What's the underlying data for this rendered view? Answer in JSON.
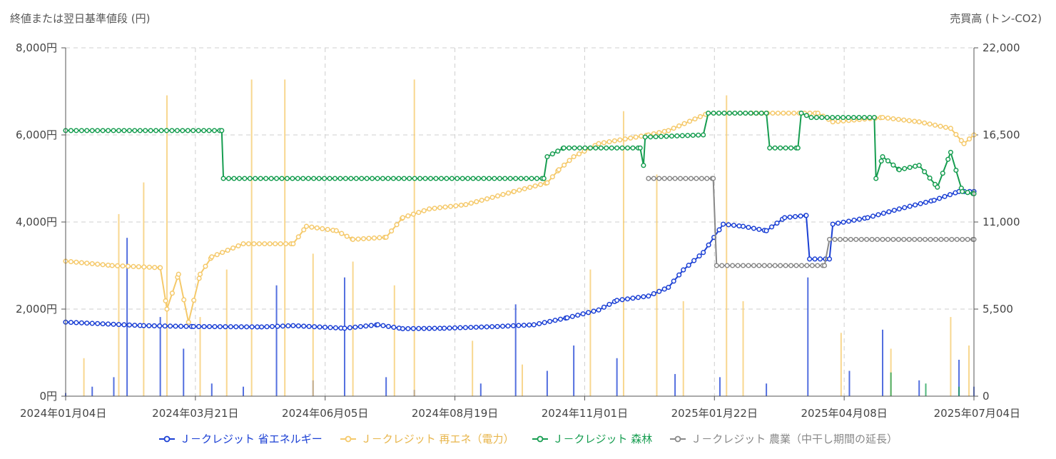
{
  "chart_data": {
    "type": "line",
    "y_left_title": "終値または翌日基準値段 (円)",
    "y_right_title": "売買高 (トン-CO2)",
    "y_left_ticks": [
      "0円",
      "2,000円",
      "4,000円",
      "6,000円",
      "8,000円"
    ],
    "y_left_range": [
      0,
      8000
    ],
    "y_right_ticks": [
      "0",
      "5,500",
      "11,000",
      "16,500",
      "22,000"
    ],
    "y_right_range": [
      0,
      22000
    ],
    "x_ticks": [
      "2024年01月04日",
      "2024年03月21日",
      "2024年06月05日",
      "2024年08月19日",
      "2024年11月01日",
      "2025年01月22日",
      "2025年04月08日",
      "2025年07月04日"
    ],
    "x_range": [
      "2024-01-04",
      "2025-07-04"
    ],
    "grid": true,
    "legend_position": "bottom",
    "series": [
      {
        "name": "Ｊ－クレジット 省エネルギー",
        "color": "#1a3fd4",
        "price": [
          [
            "2024-01-04",
            1700
          ],
          [
            "2024-02-20",
            1620
          ],
          [
            "2024-03-21",
            1600
          ],
          [
            "2024-05-01",
            1590
          ],
          [
            "2024-05-20",
            1620
          ],
          [
            "2024-06-20",
            1560
          ],
          [
            "2024-07-10",
            1640
          ],
          [
            "2024-07-25",
            1550
          ],
          [
            "2024-08-19",
            1560
          ],
          [
            "2024-09-20",
            1600
          ],
          [
            "2024-10-12",
            1640
          ],
          [
            "2024-11-01",
            1800
          ],
          [
            "2024-11-20",
            1980
          ],
          [
            "2024-12-01",
            2200
          ],
          [
            "2024-12-20",
            2300
          ],
          [
            "2025-01-01",
            2500
          ],
          [
            "2025-01-10",
            2900
          ],
          [
            "2025-01-22",
            3300
          ],
          [
            "2025-02-03",
            3950
          ],
          [
            "2025-02-15",
            3900
          ],
          [
            "2025-03-01",
            3800
          ],
          [
            "2025-03-12",
            4100
          ],
          [
            "2025-03-25",
            4150
          ],
          [
            "2025-03-27",
            3150
          ],
          [
            "2025-04-08",
            3150
          ],
          [
            "2025-04-10",
            3950
          ],
          [
            "2025-05-01",
            4100
          ],
          [
            "2025-05-20",
            4300
          ],
          [
            "2025-06-10",
            4500
          ],
          [
            "2025-06-25",
            4700
          ],
          [
            "2025-07-04",
            4700
          ]
        ],
        "volume": [
          [
            "2024-01-04",
            200
          ],
          [
            "2024-01-20",
            600
          ],
          [
            "2024-02-02",
            1200
          ],
          [
            "2024-02-10",
            10000
          ],
          [
            "2024-03-01",
            5000
          ],
          [
            "2024-03-15",
            3000
          ],
          [
            "2024-04-01",
            800
          ],
          [
            "2024-04-20",
            600
          ],
          [
            "2024-05-10",
            7000
          ],
          [
            "2024-06-01",
            1000
          ],
          [
            "2024-06-20",
            7500
          ],
          [
            "2024-07-15",
            1200
          ],
          [
            "2024-08-01",
            400
          ],
          [
            "2024-09-10",
            800
          ],
          [
            "2024-10-01",
            5800
          ],
          [
            "2024-10-20",
            1600
          ],
          [
            "2024-11-05",
            3200
          ],
          [
            "2024-12-01",
            2400
          ],
          [
            "2025-01-05",
            1400
          ],
          [
            "2025-02-01",
            1200
          ],
          [
            "2025-03-01",
            800
          ],
          [
            "2025-03-26",
            7500
          ],
          [
            "2025-04-20",
            1600
          ],
          [
            "2025-05-10",
            4200
          ],
          [
            "2025-06-01",
            1000
          ],
          [
            "2025-06-25",
            2300
          ],
          [
            "2025-07-04",
            600
          ]
        ]
      },
      {
        "name": "Ｊ－クレジット 再エネ（電力）",
        "color": "#f5c96a",
        "price": [
          [
            "2024-01-04",
            3100
          ],
          [
            "2024-02-01",
            3000
          ],
          [
            "2024-03-01",
            2950
          ],
          [
            "2024-03-05",
            2000
          ],
          [
            "2024-03-12",
            2800
          ],
          [
            "2024-03-18",
            1700
          ],
          [
            "2024-03-25",
            2800
          ],
          [
            "2024-04-01",
            3200
          ],
          [
            "2024-04-20",
            3500
          ],
          [
            "2024-05-20",
            3500
          ],
          [
            "2024-05-28",
            3900
          ],
          [
            "2024-06-15",
            3800
          ],
          [
            "2024-06-25",
            3600
          ],
          [
            "2024-07-15",
            3650
          ],
          [
            "2024-07-25",
            4100
          ],
          [
            "2024-08-10",
            4300
          ],
          [
            "2024-09-01",
            4400
          ],
          [
            "2024-09-30",
            4700
          ],
          [
            "2024-10-20",
            4900
          ],
          [
            "2024-10-27",
            5200
          ],
          [
            "2024-11-05",
            5500
          ],
          [
            "2024-11-20",
            5800
          ],
          [
            "2024-12-20",
            6000
          ],
          [
            "2025-01-01",
            6100
          ],
          [
            "2025-01-25",
            6500
          ],
          [
            "2025-02-20",
            6500
          ],
          [
            "2025-04-01",
            6500
          ],
          [
            "2025-04-10",
            6300
          ],
          [
            "2025-05-10",
            6400
          ],
          [
            "2025-06-01",
            6300
          ],
          [
            "2025-06-20",
            6150
          ],
          [
            "2025-06-28",
            5800
          ],
          [
            "2025-07-04",
            6000
          ]
        ],
        "volume": [
          [
            "2024-01-15",
            2400
          ],
          [
            "2024-02-05",
            11500
          ],
          [
            "2024-02-20",
            13500
          ],
          [
            "2024-03-05",
            19000
          ],
          [
            "2024-03-25",
            5000
          ],
          [
            "2024-04-10",
            8000
          ],
          [
            "2024-04-25",
            20000
          ],
          [
            "2024-05-15",
            20000
          ],
          [
            "2024-06-01",
            9000
          ],
          [
            "2024-06-25",
            8500
          ],
          [
            "2024-07-20",
            7000
          ],
          [
            "2024-08-01",
            20000
          ],
          [
            "2024-09-05",
            3500
          ],
          [
            "2024-10-05",
            2000
          ],
          [
            "2024-11-15",
            8000
          ],
          [
            "2024-12-05",
            18000
          ],
          [
            "2024-12-25",
            14000
          ],
          [
            "2025-01-10",
            6000
          ],
          [
            "2025-02-05",
            19000
          ],
          [
            "2025-02-15",
            6000
          ],
          [
            "2025-04-15",
            4000
          ],
          [
            "2025-05-15",
            3000
          ],
          [
            "2025-06-20",
            5000
          ],
          [
            "2025-07-01",
            3200
          ]
        ]
      },
      {
        "name": "Ｊ－クレジット 森林",
        "color": "#169d50",
        "price": [
          [
            "2024-01-04",
            6100
          ],
          [
            "2024-04-07",
            6100
          ],
          [
            "2024-04-08",
            5000
          ],
          [
            "2024-10-18",
            5000
          ],
          [
            "2024-10-20",
            5500
          ],
          [
            "2024-10-30",
            5700
          ],
          [
            "2024-12-15",
            5700
          ],
          [
            "2024-12-17",
            5300
          ],
          [
            "2024-12-18",
            5950
          ],
          [
            "2025-01-22",
            6000
          ],
          [
            "2025-01-25",
            6500
          ],
          [
            "2025-03-01",
            6500
          ],
          [
            "2025-03-03",
            5700
          ],
          [
            "2025-03-20",
            5700
          ],
          [
            "2025-03-22",
            6500
          ],
          [
            "2025-03-28",
            6400
          ],
          [
            "2025-05-05",
            6400
          ],
          [
            "2025-05-06",
            5000
          ],
          [
            "2025-05-10",
            5500
          ],
          [
            "2025-05-20",
            5200
          ],
          [
            "2025-06-01",
            5300
          ],
          [
            "2025-06-12",
            4800
          ],
          [
            "2025-06-20",
            5600
          ],
          [
            "2025-06-27",
            4700
          ],
          [
            "2025-07-04",
            4650
          ]
        ],
        "volume": [
          [
            "2025-05-15",
            1500
          ],
          [
            "2025-06-05",
            800
          ],
          [
            "2025-06-25",
            600
          ]
        ]
      },
      {
        "name": "Ｊ－クレジット 農業（中干し期間の延長）",
        "color": "#888888",
        "price": [
          [
            "2024-12-20",
            5000
          ],
          [
            "2025-01-28",
            5000
          ],
          [
            "2025-01-30",
            3000
          ],
          [
            "2025-04-05",
            3000
          ],
          [
            "2025-04-08",
            3600
          ],
          [
            "2025-07-04",
            3600
          ]
        ],
        "volume": []
      }
    ]
  }
}
